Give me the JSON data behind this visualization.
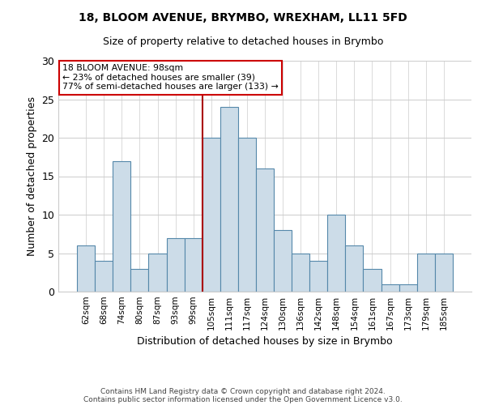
{
  "title_line1": "18, BLOOM AVENUE, BRYMBO, WREXHAM, LL11 5FD",
  "title_line2": "Size of property relative to detached houses in Brymbo",
  "xlabel": "Distribution of detached houses by size in Brymbo",
  "ylabel": "Number of detached properties",
  "categories": [
    "62sqm",
    "68sqm",
    "74sqm",
    "80sqm",
    "87sqm",
    "93sqm",
    "99sqm",
    "105sqm",
    "111sqm",
    "117sqm",
    "124sqm",
    "130sqm",
    "136sqm",
    "142sqm",
    "148sqm",
    "154sqm",
    "161sqm",
    "167sqm",
    "173sqm",
    "179sqm",
    "185sqm"
  ],
  "values": [
    6,
    4,
    17,
    3,
    5,
    7,
    7,
    20,
    24,
    20,
    16,
    8,
    5,
    4,
    10,
    6,
    3,
    1,
    1,
    5,
    5
  ],
  "bar_color": "#ccdce8",
  "bar_edge_color": "#5588aa",
  "vline_x": 6.5,
  "vline_color": "#aa0000",
  "annotation_title": "18 BLOOM AVENUE: 98sqm",
  "annotation_line2": "← 23% of detached houses are smaller (39)",
  "annotation_line3": "77% of semi-detached houses are larger (133) →",
  "annotation_box_color": "#ffffff",
  "annotation_box_edge": "#cc0000",
  "ylim": [
    0,
    30
  ],
  "yticks": [
    0,
    5,
    10,
    15,
    20,
    25,
    30
  ],
  "footer_line1": "Contains HM Land Registry data © Crown copyright and database right 2024.",
  "footer_line2": "Contains public sector information licensed under the Open Government Licence v3.0.",
  "background_color": "#ffffff"
}
